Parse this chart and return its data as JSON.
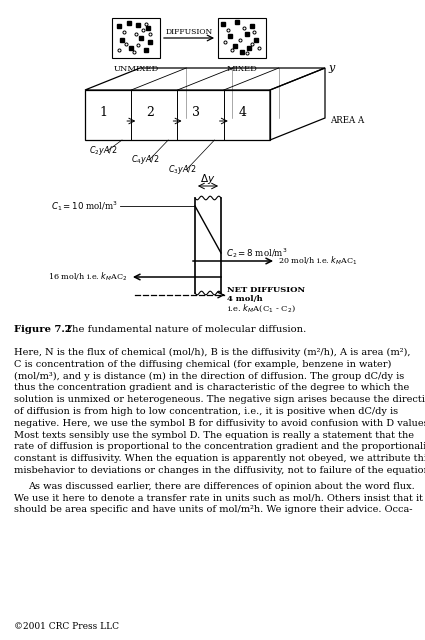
{
  "bg_color": "#ffffff",
  "page_bg": "#ffffff",
  "fig_caption_bold": "Figure 7.2",
  "fig_caption_rest": "  The fundamental nature of molecular diffusion.",
  "copyright": "©2001 CRC Press LLC",
  "body_text": [
    "Here, N is the flux of chemical (mol/h), B is the diffusivity (m²/h), A is area (m²),",
    "C is concentration of the diffusing chemical (for example, benzene in water)",
    "(mol/m³), and y is distance (m) in the direction of diffusion. The group dC/dy is",
    "thus the concentration gradient and is characteristic of the degree to which the",
    "solution is unmixed or heterogeneous. The negative sign arises because the direction",
    "of diffusion is from high to low concentration, i.e., it is positive when dC/dy is",
    "negative. Here, we use the symbol B for diffusivity to avoid confusion with D values.",
    "Most texts sensibly use the symbol D. The equation is really a statement that the",
    "rate of diffusion is proportional to the concentration gradient and the proportionality",
    "constant is diffusivity. When the equation is apparently not obeyed, we attribute this",
    "misbehavior to deviations or changes in the diffusivity, not to failure of the equation."
  ],
  "indent_text": [
    "As was discussed earlier, there are differences of opinion about the word ​flux.",
    "We use it here to denote a transfer rate in units such as mol/h. Others insist that it",
    "should be area specific and have units of mol/m²h. We ignore their advice. Occa-"
  ]
}
